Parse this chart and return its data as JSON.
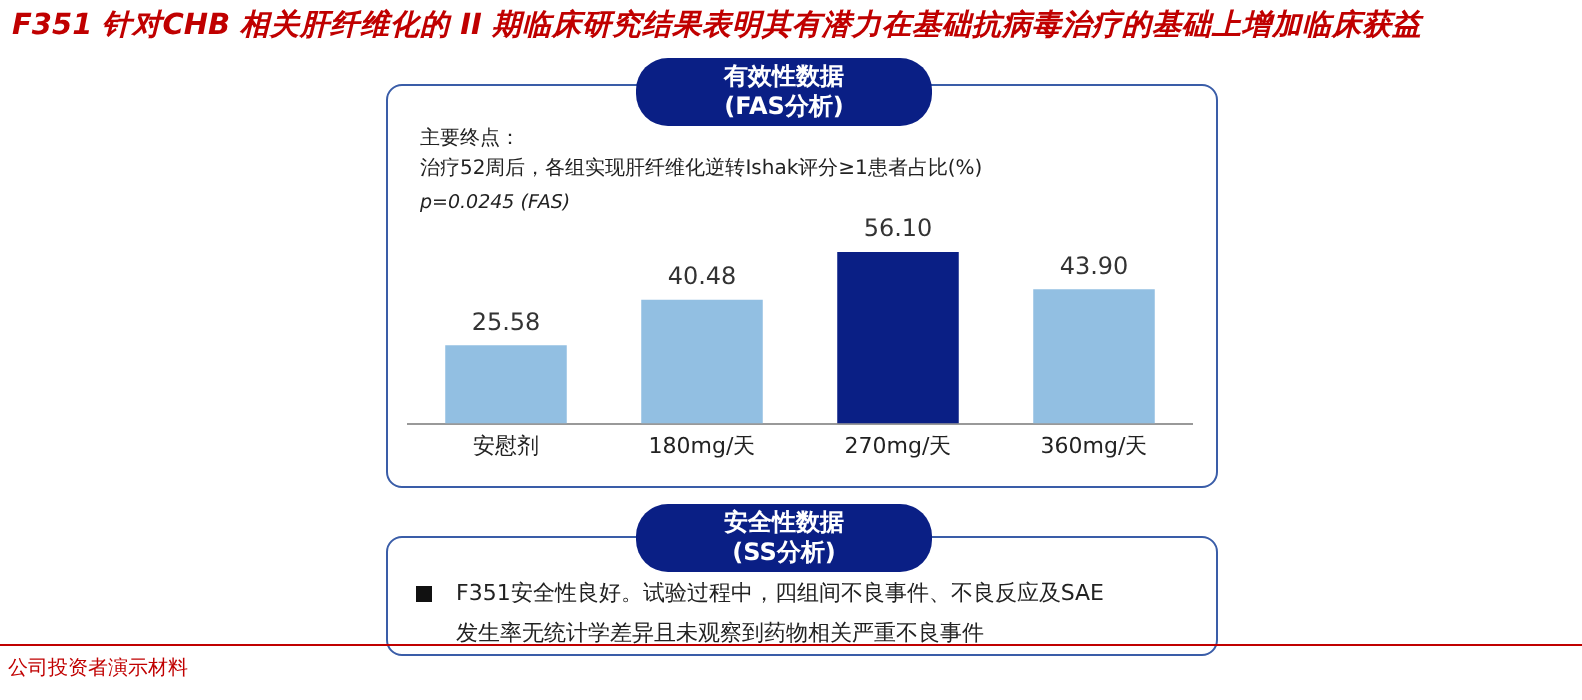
{
  "chart_data": {
    "type": "bar",
    "title": "F351 针对CHB 相关肝纤维化的 II 期临床研究结果表明其有潜力在基础抗病毒治疗的基础上增加临床获益",
    "subtitle": "主要终点：",
    "categories": [
      "安慰剂",
      "180mg/天",
      "270mg/天",
      "360mg/天"
    ],
    "values": [
      25.58,
      40.48,
      56.1,
      43.9
    ],
    "value_labels": [
      "25.58",
      "40.48",
      "56.10",
      "43.90"
    ],
    "colors": [
      "#92bfe2",
      "#92bfe2",
      "#0a1f85",
      "#92bfe2"
    ],
    "grid": false,
    "legend": false,
    "tick_labels": "x",
    "annotations": [
      "有效性数据\n(FAS分析)",
      "p=0.0245 (FAS)",
      "安全性数据\n(SS分析)",
      "F351安全性良好。试验过程中，四组间不良事件、不良反应及SAE",
      "发生率无统计学差异且未观察到药物相关严重不良事件",
      "公司投资者演示材料",
      "治疗52周后，各组实现肝纤维化逆转Ishak评分≥1患者占比(%)"
    ]
  }
}
